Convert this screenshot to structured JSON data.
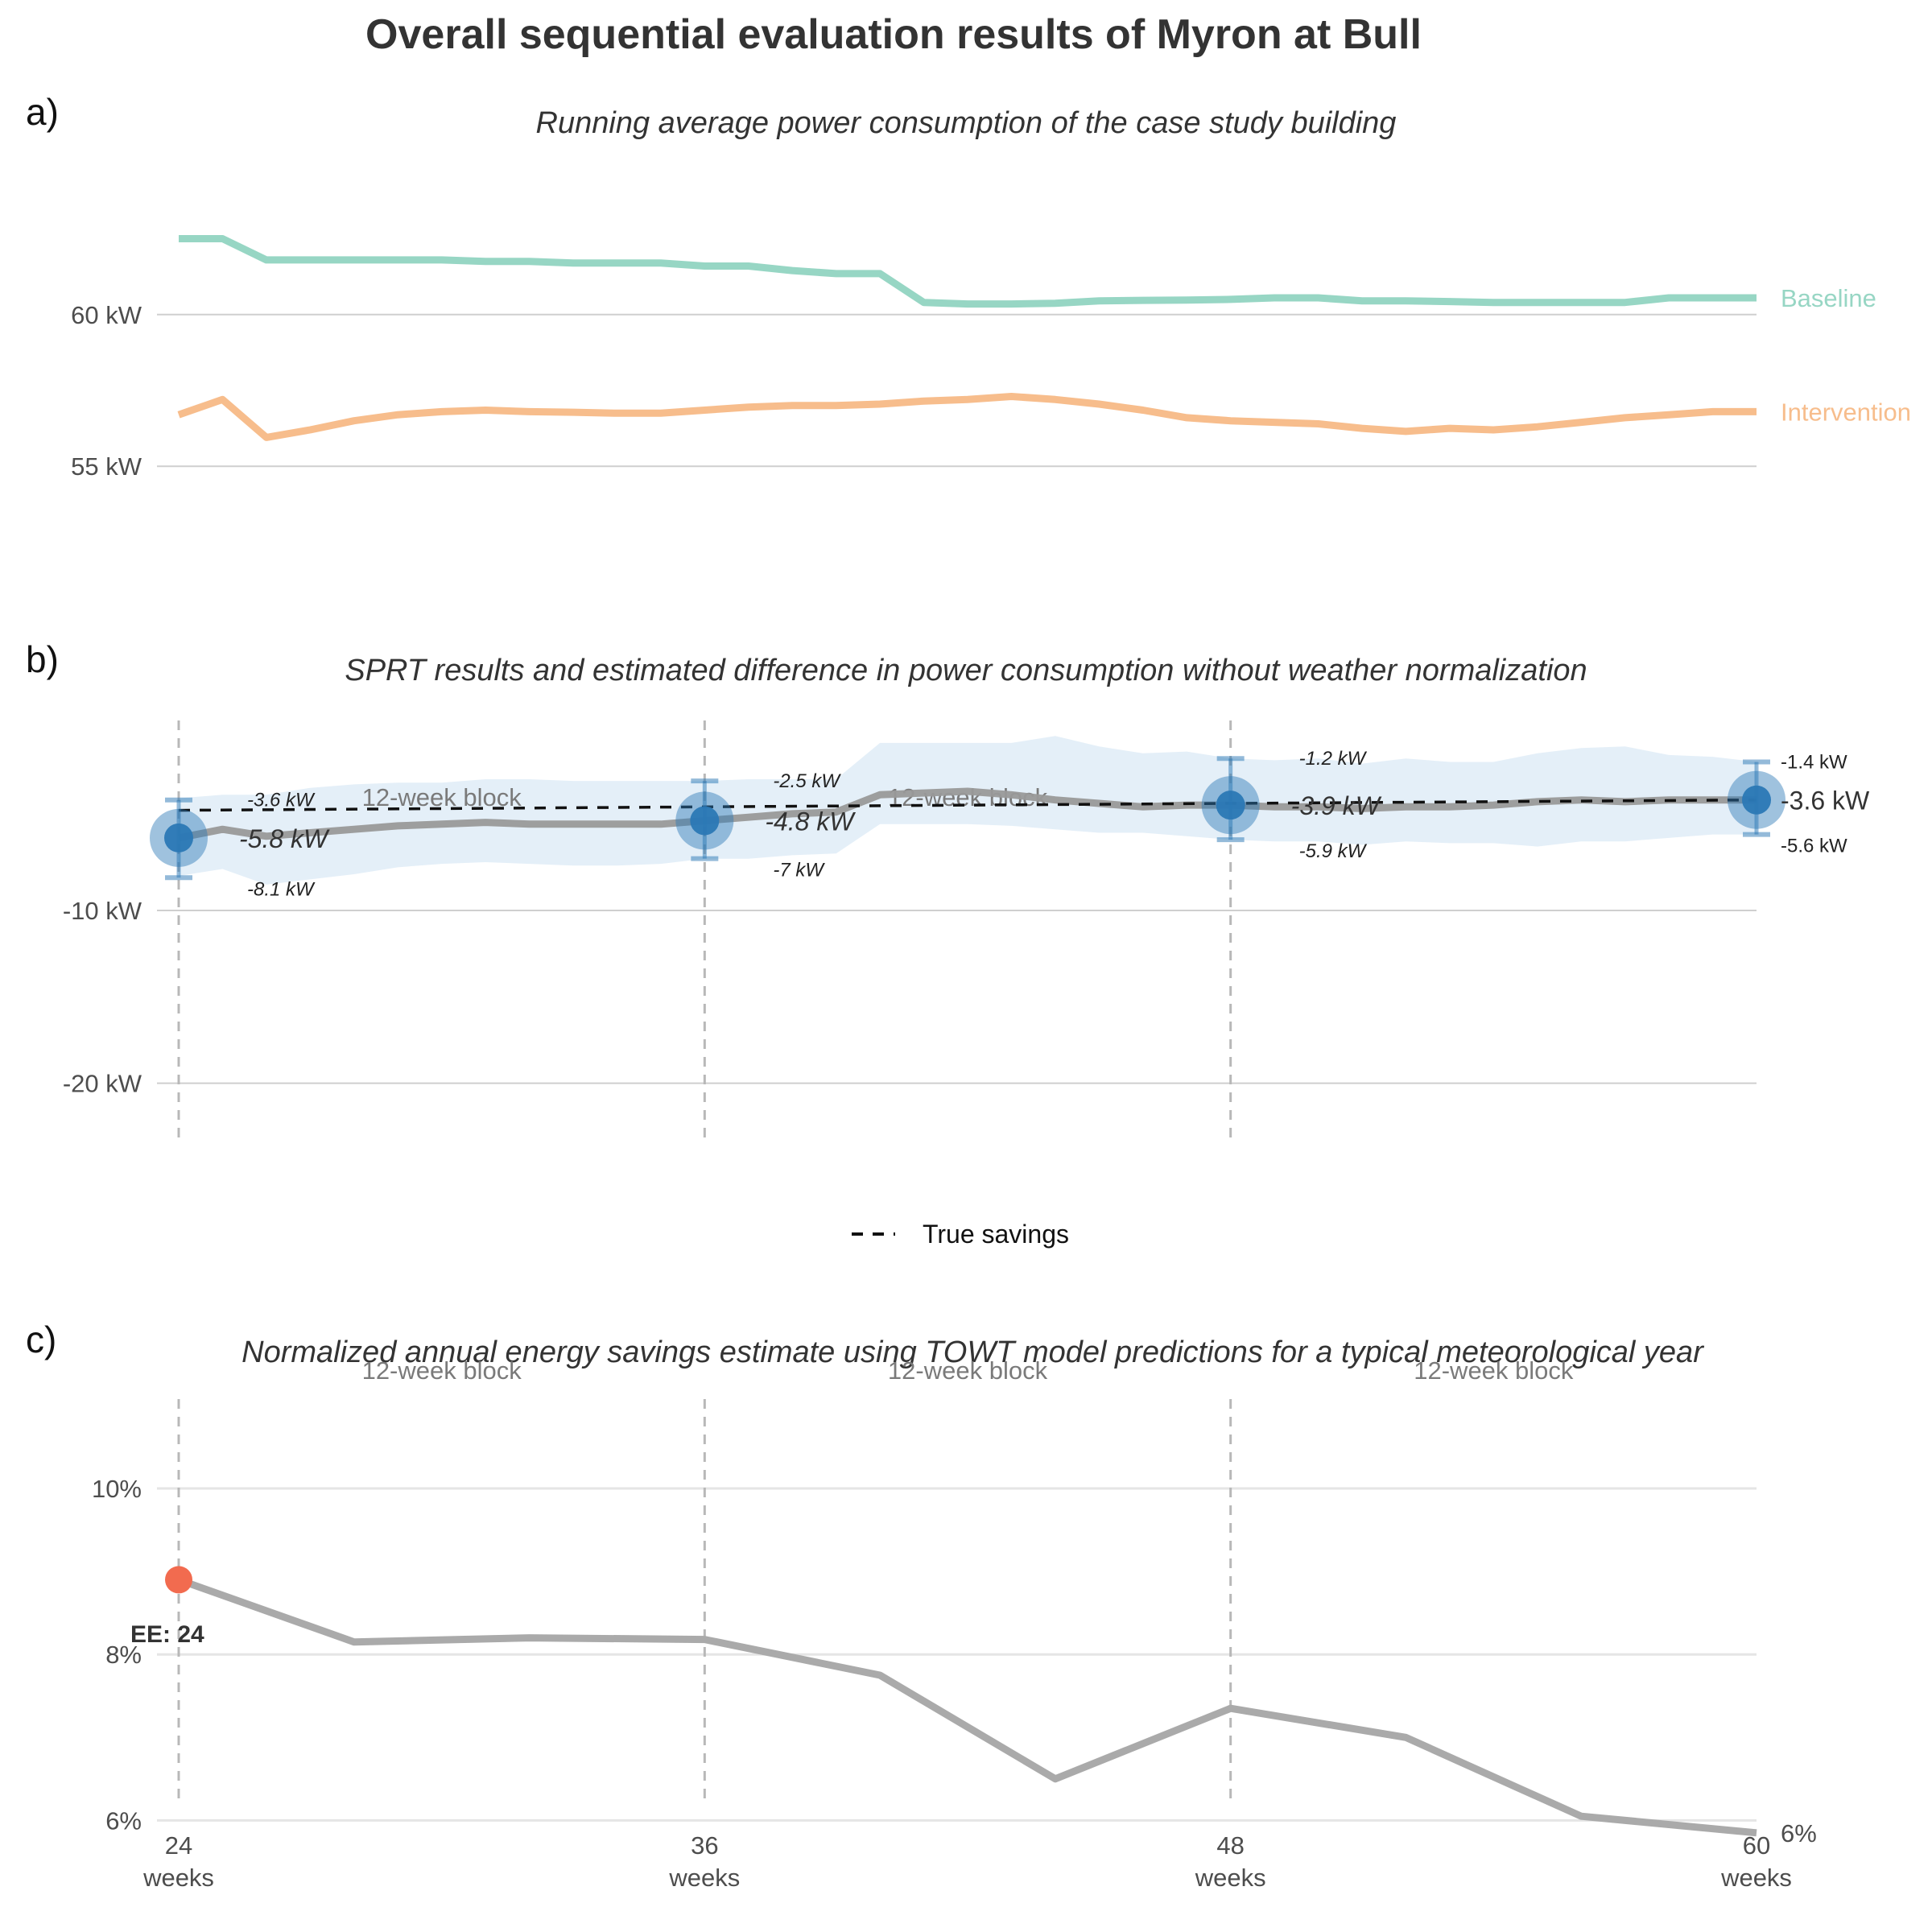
{
  "title": "Overall sequential evaluation results of Myron at Bull",
  "chart_data": [
    {
      "panel": "a)",
      "type": "line",
      "title": "Running average power consumption of the case study building",
      "ylim": [
        51,
        64
      ],
      "yticks": [
        {
          "value": 55,
          "label": "55 kW"
        },
        {
          "value": 60,
          "label": "60 kW"
        }
      ],
      "x": [
        24,
        25,
        26,
        27,
        28,
        29,
        30,
        31,
        32,
        33,
        34,
        35,
        36,
        37,
        38,
        39,
        40,
        41,
        42,
        43,
        44,
        45,
        46,
        47,
        48,
        49,
        50,
        51,
        52,
        53,
        54,
        55,
        56,
        57,
        58,
        59,
        60
      ],
      "series": [
        {
          "name": "Baseline",
          "color": "#97d6c4",
          "values": [
            62.5,
            62.5,
            61.8,
            61.8,
            61.8,
            61.8,
            61.8,
            61.75,
            61.75,
            61.7,
            61.7,
            61.7,
            61.6,
            61.6,
            61.45,
            61.35,
            61.35,
            60.4,
            60.35,
            60.35,
            60.37,
            60.45,
            60.47,
            60.48,
            60.5,
            60.55,
            60.55,
            60.45,
            60.45,
            60.43,
            60.4,
            60.4,
            60.4,
            60.4,
            60.55,
            60.55,
            60.55
          ]
        },
        {
          "name": "Intervention",
          "color": "#f7bd8c",
          "values": [
            56.7,
            57.2,
            55.95,
            56.2,
            56.5,
            56.7,
            56.8,
            56.85,
            56.8,
            56.78,
            56.75,
            56.75,
            56.85,
            56.95,
            57.0,
            57.0,
            57.05,
            57.15,
            57.2,
            57.3,
            57.2,
            57.05,
            56.85,
            56.6,
            56.5,
            56.45,
            56.4,
            56.25,
            56.15,
            56.25,
            56.2,
            56.3,
            56.45,
            56.6,
            56.7,
            56.8,
            56.8
          ]
        }
      ]
    },
    {
      "panel": "b)",
      "type": "line",
      "title": "SPRT results and estimated difference in power consumption without weather normalization",
      "ylim": [
        -23,
        1
      ],
      "yticks": [
        {
          "value": -20,
          "label": "-20 kW"
        },
        {
          "value": -10,
          "label": "-10 kW"
        }
      ],
      "vlines": [
        24,
        36,
        48
      ],
      "block_labels": [
        "12-week block",
        "12-week block"
      ],
      "x": [
        24,
        25,
        26,
        27,
        28,
        29,
        30,
        31,
        32,
        33,
        34,
        35,
        36,
        37,
        38,
        39,
        40,
        41,
        42,
        43,
        44,
        45,
        46,
        47,
        48,
        49,
        50,
        51,
        52,
        53,
        54,
        55,
        56,
        57,
        58,
        59,
        60
      ],
      "estimate": [
        -5.8,
        -5.3,
        -5.7,
        -5.5,
        -5.3,
        -5.1,
        -5.0,
        -4.9,
        -5.0,
        -5.0,
        -5.0,
        -5.0,
        -4.8,
        -4.6,
        -4.4,
        -4.3,
        -3.3,
        -3.2,
        -3.1,
        -3.3,
        -3.6,
        -3.8,
        -4.0,
        -3.9,
        -3.9,
        -4.0,
        -4.0,
        -4.1,
        -4.0,
        -4.0,
        -3.9,
        -3.7,
        -3.6,
        -3.7,
        -3.6,
        -3.6,
        -3.6
      ],
      "ci_upper": [
        -3.5,
        -3.3,
        -3.3,
        -2.9,
        -2.7,
        -2.6,
        -2.6,
        -2.4,
        -2.4,
        -2.5,
        -2.5,
        -2.5,
        -2.5,
        -2.4,
        -2.4,
        -2.4,
        -0.3,
        -0.3,
        -0.3,
        -0.3,
        0.1,
        -0.5,
        -0.9,
        -0.8,
        -1.2,
        -1.3,
        -1.2,
        -1.5,
        -1.2,
        -1.4,
        -1.4,
        -0.9,
        -0.6,
        -0.5,
        -1.0,
        -1.1,
        -1.4
      ],
      "ci_lower": [
        -8.0,
        -7.6,
        -8.5,
        -8.2,
        -7.9,
        -7.5,
        -7.3,
        -7.2,
        -7.3,
        -7.4,
        -7.4,
        -7.3,
        -7.0,
        -7.0,
        -6.8,
        -6.7,
        -5.0,
        -5.0,
        -5.0,
        -5.1,
        -5.3,
        -5.5,
        -5.5,
        -5.7,
        -5.9,
        -6.0,
        -6.0,
        -6.2,
        -6.0,
        -6.1,
        -6.1,
        -6.3,
        -6.0,
        -6.0,
        -5.8,
        -5.6,
        -5.6
      ],
      "true_savings": {
        "name": "True savings",
        "x": [
          24,
          60
        ],
        "values": [
          -4.2,
          -3.6
        ]
      },
      "sprt_points": [
        {
          "x": 24,
          "estimate": -5.8,
          "upper": -3.6,
          "lower": -8.1,
          "estimate_label": "-5.8 kW",
          "upper_label": "-3.6 kW",
          "lower_label": "-8.1 kW"
        },
        {
          "x": 36,
          "estimate": -4.8,
          "upper": -2.5,
          "lower": -7.0,
          "estimate_label": "-4.8 kW",
          "upper_label": "-2.5 kW",
          "lower_label": "-7 kW"
        },
        {
          "x": 48,
          "estimate": -3.9,
          "upper": -1.2,
          "lower": -5.9,
          "estimate_label": "-3.9 kW",
          "upper_label": "-1.2 kW",
          "lower_label": "-5.9 kW"
        },
        {
          "x": 60,
          "estimate": -3.6,
          "upper": -1.4,
          "lower": -5.6,
          "estimate_label": "-3.6 kW",
          "upper_label": "-1.4 kW",
          "lower_label": "-5.6 kW"
        }
      ],
      "colors": {
        "point": "#2b78b5",
        "band": "#dbeaf5",
        "estimate": "#999999",
        "true": "#111111"
      },
      "legend": {
        "placement": "bottom",
        "label": "True savings"
      }
    },
    {
      "panel": "c)",
      "type": "line",
      "title": "Normalized annual energy savings estimate using TOWT model predictions for a typical meteorological year",
      "ylim": [
        5.8,
        11.3
      ],
      "yticks": [
        {
          "value": 6,
          "label": "6%"
        },
        {
          "value": 8,
          "label": "8%"
        },
        {
          "value": 10,
          "label": "10%"
        }
      ],
      "vlines": [
        24,
        36,
        48
      ],
      "block_labels": [
        "12-week block",
        "12-week block",
        "12-week block"
      ],
      "x": [
        24,
        28,
        32,
        36,
        40,
        44,
        48,
        52,
        56,
        60
      ],
      "values": [
        8.9,
        8.15,
        8.2,
        8.18,
        7.75,
        6.5,
        7.35,
        7.0,
        6.05,
        5.85
      ],
      "end_label": "6%",
      "early_estimate": {
        "x": 24,
        "value": 8.9,
        "label": "EE: 24",
        "color": "#f26b4f"
      },
      "xticks": [
        {
          "value": 24,
          "line1": "24",
          "line2": "weeks"
        },
        {
          "value": 36,
          "line1": "36",
          "line2": "weeks"
        },
        {
          "value": 48,
          "line1": "48",
          "line2": "weeks"
        },
        {
          "value": 60,
          "line1": "60",
          "line2": "weeks"
        }
      ],
      "colors": {
        "line": "#aaaaaa"
      }
    }
  ]
}
